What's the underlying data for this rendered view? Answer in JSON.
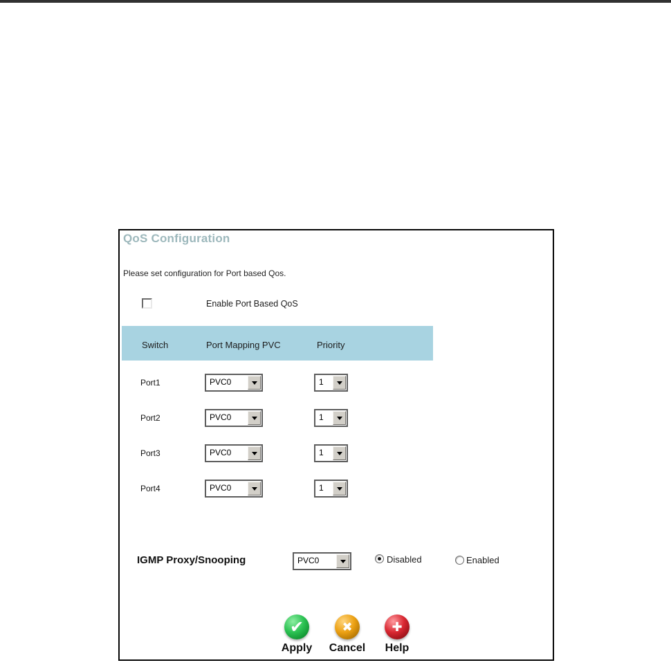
{
  "page": {
    "top_bar_color": "#313131"
  },
  "panel": {
    "title": "QoS Configuration",
    "title_color": "#9db8bc",
    "description": "Please set configuration for Port based Qos.",
    "enable_checkbox": {
      "checked": false,
      "label": "Enable Port Based QoS"
    },
    "table": {
      "header_bg": "#a8d3e1",
      "columns": [
        "Switch",
        "Port Mapping PVC",
        "Priority"
      ],
      "rows": [
        {
          "port": "Port1",
          "pvc": "PVC0",
          "priority": "1"
        },
        {
          "port": "Port2",
          "pvc": "PVC0",
          "priority": "1"
        },
        {
          "port": "Port3",
          "pvc": "PVC0",
          "priority": "1"
        },
        {
          "port": "Port4",
          "pvc": "PVC0",
          "priority": "1"
        }
      ]
    },
    "igmp": {
      "label": "IGMP Proxy/Snooping",
      "pvc": "PVC0",
      "options": [
        {
          "label": "Disabled",
          "selected": true
        },
        {
          "label": "Enabled",
          "selected": false
        }
      ]
    },
    "actions": [
      {
        "name": "apply",
        "label": "Apply",
        "icon": "check-circle-icon",
        "glyph": "✔",
        "color": "#1faa3c"
      },
      {
        "name": "cancel",
        "label": "Cancel",
        "icon": "x-circle-icon",
        "glyph": "✖",
        "color": "#eca114"
      },
      {
        "name": "help",
        "label": "Help",
        "icon": "plus-circle-icon",
        "glyph": "✚",
        "color": "#d92832"
      }
    ]
  }
}
